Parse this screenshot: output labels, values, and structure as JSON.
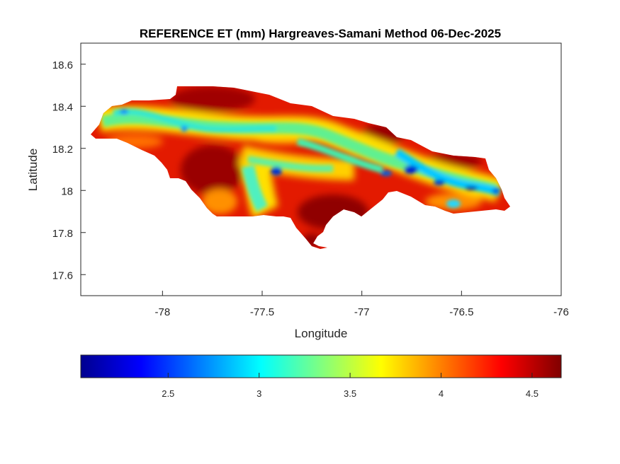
{
  "chart_data": {
    "type": "heatmap",
    "title": "REFERENCE ET (mm) Hargreaves-Samani Method  06-Dec-2025",
    "xlabel": "Longitude",
    "ylabel": "Latitude",
    "xlim": [
      -78.41,
      -76.0
    ],
    "ylim": [
      17.5,
      18.7
    ],
    "xticks": [
      -78,
      -77.5,
      -77,
      -76.5,
      -76
    ],
    "xtick_labels": [
      "-78",
      "-77.5",
      "-77",
      "-76.5",
      "-76"
    ],
    "yticks": [
      18.6,
      18.4,
      18.2,
      18,
      17.8,
      17.6
    ],
    "ytick_labels": [
      "18.6",
      "18.4",
      "18.2",
      "18",
      "17.8",
      "17.6"
    ],
    "colormap": "jet",
    "colorbar": {
      "orientation": "horizontal",
      "placement": "bottom",
      "range": [
        2.02,
        4.66
      ],
      "ticks": [
        2.5,
        3,
        3.5,
        4,
        4.5
      ],
      "tick_labels": [
        "2.5",
        "3",
        "3.5",
        "4",
        "4.5"
      ]
    },
    "region": "Jamaica",
    "value_features": [
      {
        "name": "northern-central ridge band",
        "value_range": [
          2.7,
          3.4
        ]
      },
      {
        "name": "eastern Blue Mountains low",
        "value_range": [
          2.1,
          2.9
        ]
      },
      {
        "name": "central low spot",
        "value_range": [
          2.2,
          2.6
        ]
      },
      {
        "name": "southern plains high",
        "value_range": [
          4.3,
          4.66
        ]
      },
      {
        "name": "northern coast high",
        "value_range": [
          4.2,
          4.6
        ]
      }
    ]
  },
  "colors": {
    "jet": [
      "#00008f",
      "#0000ff",
      "#0080ff",
      "#00ffff",
      "#80ff80",
      "#ffff00",
      "#ff8000",
      "#ff0000",
      "#800000"
    ],
    "axis": "#262626"
  }
}
